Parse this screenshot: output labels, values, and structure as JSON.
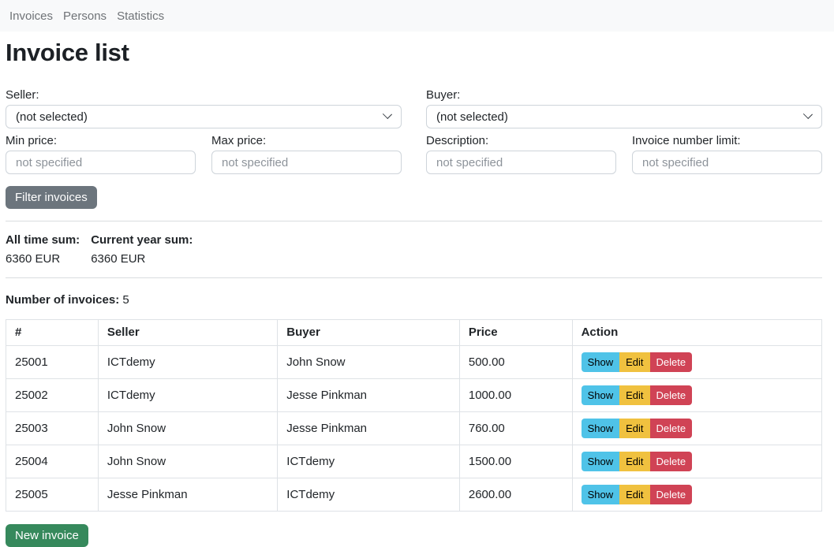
{
  "navbar": {
    "items": [
      {
        "label": "Invoices"
      },
      {
        "label": "Persons"
      },
      {
        "label": "Statistics"
      }
    ]
  },
  "page": {
    "title": "Invoice list"
  },
  "filters": {
    "seller": {
      "label": "Seller:",
      "selected": "(not selected)"
    },
    "buyer": {
      "label": "Buyer:",
      "selected": "(not selected)"
    },
    "min_price": {
      "label": "Min price:",
      "value": "",
      "placeholder": "not specified"
    },
    "max_price": {
      "label": "Max price:",
      "value": "",
      "placeholder": "not specified"
    },
    "description": {
      "label": "Description:",
      "value": "",
      "placeholder": "not specified"
    },
    "invoice_number_limit": {
      "label": "Invoice number limit:",
      "value": "",
      "placeholder": "not specified"
    },
    "submit_label": "Filter invoices"
  },
  "summary": {
    "all_time": {
      "label": "All time sum:",
      "value": "6360 EUR"
    },
    "current_year": {
      "label": "Current year sum:",
      "value": "6360 EUR"
    }
  },
  "count": {
    "label": "Number of invoices:",
    "value": "5"
  },
  "invoices": {
    "headers": {
      "number": "#",
      "seller": "Seller",
      "buyer": "Buyer",
      "price": "Price",
      "action": "Action"
    },
    "actions": {
      "show": "Show",
      "edit": "Edit",
      "delete": "Delete"
    },
    "rows": [
      {
        "number": "25001",
        "seller": "ICTdemy",
        "buyer": "John Snow",
        "price": "500.00"
      },
      {
        "number": "25002",
        "seller": "ICTdemy",
        "buyer": "Jesse Pinkman",
        "price": "1000.00"
      },
      {
        "number": "25003",
        "seller": "John Snow",
        "buyer": "Jesse Pinkman",
        "price": "760.00"
      },
      {
        "number": "25004",
        "seller": "John Snow",
        "buyer": "ICTdemy",
        "price": "1500.00"
      },
      {
        "number": "25005",
        "seller": "Jesse Pinkman",
        "buyer": "ICTdemy",
        "price": "2600.00"
      }
    ]
  },
  "footer": {
    "new_invoice_label": "New invoice"
  },
  "icons": {
    "select_caret": "chevron-down"
  },
  "colors": {
    "navbar_bg": "#f8f9fa",
    "nav_link": "#6f7377",
    "text": "#212529",
    "input_border": "#ced4da",
    "table_border": "#dee2e6",
    "btn_filter": "#6c757d",
    "btn_show": "#4fc3e8",
    "btn_edit": "#f0c13f",
    "btn_delete": "#d04355",
    "btn_new_invoice": "#36895c"
  }
}
